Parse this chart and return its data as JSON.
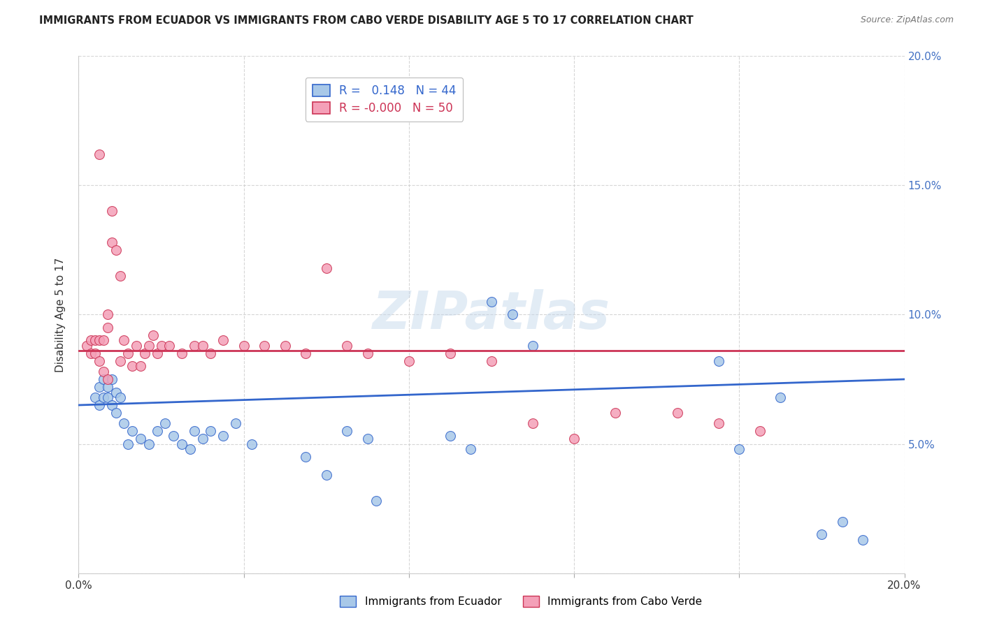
{
  "title": "IMMIGRANTS FROM ECUADOR VS IMMIGRANTS FROM CABO VERDE DISABILITY AGE 5 TO 17 CORRELATION CHART",
  "source": "Source: ZipAtlas.com",
  "ylabel": "Disability Age 5 to 17",
  "xlim": [
    0.0,
    0.2
  ],
  "ylim": [
    0.0,
    0.2
  ],
  "ytick_values": [
    0.0,
    0.05,
    0.1,
    0.15,
    0.2
  ],
  "xtick_values": [
    0.0,
    0.04,
    0.08,
    0.12,
    0.16,
    0.2
  ],
  "color_ecuador": "#a8c8e8",
  "color_cabo_verde": "#f4a0b8",
  "color_line_ecuador": "#3366cc",
  "color_line_cabo_verde": "#cc3355",
  "background_color": "#ffffff",
  "watermark": "ZIPatlas",
  "ecuador_x": [
    0.004,
    0.005,
    0.005,
    0.006,
    0.006,
    0.007,
    0.007,
    0.008,
    0.008,
    0.009,
    0.009,
    0.01,
    0.011,
    0.012,
    0.013,
    0.015,
    0.017,
    0.019,
    0.021,
    0.023,
    0.025,
    0.027,
    0.028,
    0.03,
    0.032,
    0.035,
    0.038,
    0.042,
    0.055,
    0.06,
    0.065,
    0.07,
    0.072,
    0.09,
    0.095,
    0.1,
    0.105,
    0.11,
    0.155,
    0.16,
    0.17,
    0.18,
    0.185,
    0.19
  ],
  "ecuador_y": [
    0.068,
    0.065,
    0.072,
    0.068,
    0.075,
    0.068,
    0.072,
    0.065,
    0.075,
    0.07,
    0.062,
    0.068,
    0.058,
    0.05,
    0.055,
    0.052,
    0.05,
    0.055,
    0.058,
    0.053,
    0.05,
    0.048,
    0.055,
    0.052,
    0.055,
    0.053,
    0.058,
    0.05,
    0.045,
    0.038,
    0.055,
    0.052,
    0.028,
    0.053,
    0.048,
    0.105,
    0.1,
    0.088,
    0.082,
    0.048,
    0.068,
    0.015,
    0.02,
    0.013
  ],
  "cabo_verde_x": [
    0.002,
    0.003,
    0.003,
    0.004,
    0.004,
    0.005,
    0.005,
    0.005,
    0.006,
    0.006,
    0.007,
    0.007,
    0.007,
    0.008,
    0.008,
    0.009,
    0.01,
    0.01,
    0.011,
    0.012,
    0.013,
    0.014,
    0.015,
    0.016,
    0.017,
    0.018,
    0.019,
    0.02,
    0.022,
    0.025,
    0.028,
    0.03,
    0.032,
    0.035,
    0.04,
    0.045,
    0.05,
    0.055,
    0.06,
    0.065,
    0.07,
    0.08,
    0.09,
    0.1,
    0.11,
    0.12,
    0.13,
    0.145,
    0.155,
    0.165
  ],
  "cabo_verde_y": [
    0.088,
    0.085,
    0.09,
    0.085,
    0.09,
    0.162,
    0.082,
    0.09,
    0.09,
    0.078,
    0.095,
    0.1,
    0.075,
    0.14,
    0.128,
    0.125,
    0.082,
    0.115,
    0.09,
    0.085,
    0.08,
    0.088,
    0.08,
    0.085,
    0.088,
    0.092,
    0.085,
    0.088,
    0.088,
    0.085,
    0.088,
    0.088,
    0.085,
    0.09,
    0.088,
    0.088,
    0.088,
    0.085,
    0.118,
    0.088,
    0.085,
    0.082,
    0.085,
    0.082,
    0.058,
    0.052,
    0.062,
    0.062,
    0.058,
    0.055
  ],
  "trend_ec_x0": 0.0,
  "trend_ec_y0": 0.065,
  "trend_ec_x1": 0.2,
  "trend_ec_y1": 0.075,
  "trend_cv_x0": 0.0,
  "trend_cv_y0": 0.086,
  "trend_cv_x1": 0.2,
  "trend_cv_y1": 0.086
}
